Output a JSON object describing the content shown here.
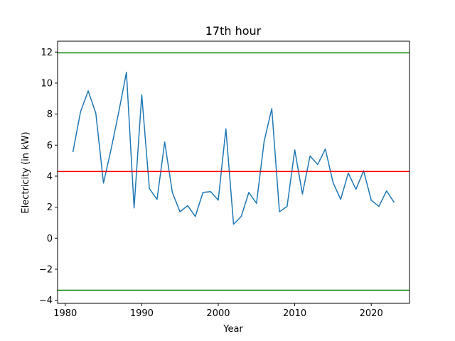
{
  "chart_data": {
    "type": "line",
    "title": "17th hour",
    "xlabel": "Year",
    "ylabel": "Electricity (in kW)",
    "xlim": [
      1979,
      2025
    ],
    "ylim": [
      -4.2,
      12.7
    ],
    "xticks": [
      1980,
      1990,
      2000,
      2010,
      2020
    ],
    "yticks": [
      -4,
      -2,
      0,
      2,
      4,
      6,
      8,
      10,
      12
    ],
    "grid": false,
    "series": [
      {
        "color": "#1f77b4",
        "x": [
          1981,
          1982,
          1983,
          1984,
          1985,
          1986,
          1987,
          1988,
          1989,
          1990,
          1991,
          1992,
          1993,
          1994,
          1995,
          1996,
          1997,
          1998,
          1999,
          2000,
          2001,
          2002,
          2003,
          2004,
          2005,
          2006,
          2007,
          2008,
          2009,
          2010,
          2011,
          2012,
          2013,
          2014,
          2015,
          2016,
          2017,
          2018,
          2019,
          2020,
          2021,
          2022,
          2023
        ],
        "values": [
          5.55,
          8.15,
          9.5,
          8.05,
          3.55,
          5.75,
          8.15,
          10.7,
          1.95,
          9.25,
          3.2,
          2.5,
          6.2,
          2.95,
          1.7,
          2.1,
          1.4,
          2.95,
          3.0,
          2.45,
          7.05,
          0.9,
          1.4,
          2.95,
          2.25,
          6.25,
          8.35,
          1.7,
          2.05,
          5.7,
          2.85,
          5.3,
          4.75,
          5.75,
          3.6,
          2.5,
          4.2,
          3.15,
          4.35,
          2.45,
          2.05,
          3.05,
          2.3
        ]
      }
    ],
    "hlines": [
      {
        "y": 11.95,
        "color": "#008000"
      },
      {
        "y": 4.3,
        "color": "#ff0000"
      },
      {
        "y": -3.35,
        "color": "#008000"
      }
    ]
  }
}
